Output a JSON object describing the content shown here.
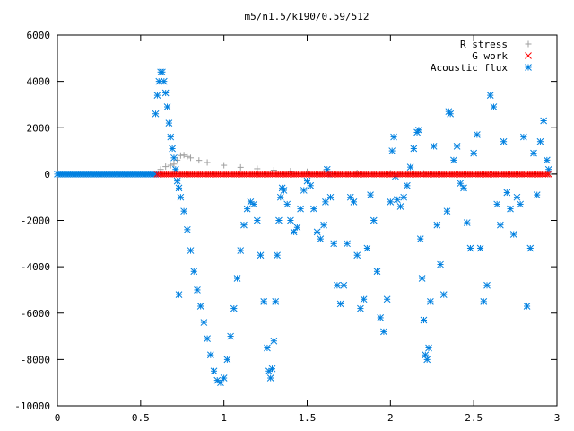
{
  "chart_data": {
    "type": "scatter",
    "title": "m5/n1.5/k190/0.59/512",
    "xlabel": "",
    "ylabel": "",
    "xlim": [
      0,
      3
    ],
    "ylim": [
      -10000,
      6000
    ],
    "x_ticks": [
      "0",
      "0.5",
      "1",
      "1.5",
      "2",
      "2.5",
      "3"
    ],
    "y_ticks": [
      "-10000",
      "-8000",
      "-6000",
      "-4000",
      "-2000",
      "0",
      "2000",
      "4000",
      "6000"
    ],
    "grid": false,
    "legend_position": "top-right",
    "series": [
      {
        "name": "R stress",
        "marker": "plus",
        "color": "#a0a0a0",
        "points": [
          [
            0.62,
            200
          ],
          [
            0.65,
            320
          ],
          [
            0.68,
            380
          ],
          [
            0.7,
            430
          ],
          [
            0.72,
            600
          ],
          [
            0.74,
            800
          ],
          [
            0.76,
            820
          ],
          [
            0.78,
            760
          ],
          [
            0.8,
            700
          ],
          [
            0.85,
            590
          ],
          [
            0.9,
            500
          ],
          [
            1.0,
            380
          ],
          [
            1.1,
            290
          ],
          [
            1.2,
            230
          ],
          [
            1.3,
            170
          ],
          [
            1.4,
            130
          ],
          [
            1.5,
            100
          ],
          [
            1.6,
            80
          ],
          [
            1.8,
            50
          ],
          [
            2.0,
            40
          ],
          [
            2.2,
            30
          ],
          [
            2.4,
            20
          ],
          [
            2.6,
            15
          ],
          [
            2.8,
            10
          ],
          [
            2.95,
            5
          ]
        ]
      },
      {
        "name": "G work",
        "marker": "cross",
        "color": "#ff0000",
        "points": [
          [
            0.6,
            0
          ],
          [
            2.95,
            0
          ]
        ]
      },
      {
        "name": "Acoustic flux",
        "marker": "asterisk",
        "color": "#0080e0",
        "points": [
          [
            0.0,
            0
          ],
          [
            0.6,
            0
          ],
          [
            0.59,
            2600
          ],
          [
            0.6,
            3400
          ],
          [
            0.61,
            4000
          ],
          [
            0.62,
            4400
          ],
          [
            0.63,
            4400
          ],
          [
            0.64,
            4000
          ],
          [
            0.65,
            3500
          ],
          [
            0.66,
            2900
          ],
          [
            0.67,
            2200
          ],
          [
            0.68,
            1600
          ],
          [
            0.69,
            1100
          ],
          [
            0.7,
            700
          ],
          [
            0.71,
            200
          ],
          [
            0.72,
            -300
          ],
          [
            0.73,
            -600
          ],
          [
            0.73,
            -5200
          ],
          [
            0.74,
            -1000
          ],
          [
            0.76,
            -1600
          ],
          [
            0.78,
            -2400
          ],
          [
            0.8,
            -3300
          ],
          [
            0.82,
            -4200
          ],
          [
            0.84,
            -5000
          ],
          [
            0.86,
            -5700
          ],
          [
            0.88,
            -6400
          ],
          [
            0.9,
            -7100
          ],
          [
            0.92,
            -7800
          ],
          [
            0.94,
            -8500
          ],
          [
            0.96,
            -8900
          ],
          [
            0.98,
            -9000
          ],
          [
            1.0,
            -8800
          ],
          [
            1.02,
            -8000
          ],
          [
            1.04,
            -7000
          ],
          [
            1.06,
            -5800
          ],
          [
            1.08,
            -4500
          ],
          [
            1.1,
            -3300
          ],
          [
            1.12,
            -2200
          ],
          [
            1.14,
            -1500
          ],
          [
            1.16,
            -1200
          ],
          [
            1.18,
            -1300
          ],
          [
            1.2,
            -2000
          ],
          [
            1.22,
            -3500
          ],
          [
            1.24,
            -5500
          ],
          [
            1.26,
            -7500
          ],
          [
            1.27,
            -8500
          ],
          [
            1.28,
            -8800
          ],
          [
            1.29,
            -8400
          ],
          [
            1.3,
            -7200
          ],
          [
            1.31,
            -5500
          ],
          [
            1.32,
            -3500
          ],
          [
            1.33,
            -2000
          ],
          [
            1.34,
            -1000
          ],
          [
            1.35,
            -600
          ],
          [
            1.36,
            -700
          ],
          [
            1.38,
            -1300
          ],
          [
            1.4,
            -2000
          ],
          [
            1.42,
            -2500
          ],
          [
            1.44,
            -2300
          ],
          [
            1.46,
            -1500
          ],
          [
            1.48,
            -700
          ],
          [
            1.5,
            -300
          ],
          [
            1.52,
            -500
          ],
          [
            1.54,
            -1500
          ],
          [
            1.56,
            -2500
          ],
          [
            1.58,
            -2800
          ],
          [
            1.6,
            -2200
          ],
          [
            1.61,
            -1200
          ],
          [
            1.62,
            200
          ],
          [
            1.63,
            0
          ],
          [
            1.64,
            -1000
          ],
          [
            1.66,
            -3000
          ],
          [
            1.68,
            -4800
          ],
          [
            1.7,
            -5600
          ],
          [
            1.72,
            -4800
          ],
          [
            1.74,
            -3000
          ],
          [
            1.76,
            -1000
          ],
          [
            1.78,
            -1200
          ],
          [
            1.8,
            -3500
          ],
          [
            1.82,
            -5800
          ],
          [
            1.84,
            -5400
          ],
          [
            1.86,
            -3200
          ],
          [
            1.88,
            -900
          ],
          [
            1.9,
            -2000
          ],
          [
            1.92,
            -4200
          ],
          [
            1.94,
            -6200
          ],
          [
            1.96,
            -6800
          ],
          [
            1.98,
            -5400
          ],
          [
            2.0,
            -1200
          ],
          [
            2.01,
            1000
          ],
          [
            2.02,
            1600
          ],
          [
            2.03,
            -100
          ],
          [
            2.04,
            -1100
          ],
          [
            2.06,
            -1400
          ],
          [
            2.08,
            -1000
          ],
          [
            2.1,
            -500
          ],
          [
            2.12,
            300
          ],
          [
            2.14,
            1100
          ],
          [
            2.16,
            1800
          ],
          [
            2.17,
            1900
          ],
          [
            2.18,
            -2800
          ],
          [
            2.19,
            -4500
          ],
          [
            2.2,
            -6300
          ],
          [
            2.21,
            -7800
          ],
          [
            2.22,
            -8000
          ],
          [
            2.23,
            -7500
          ],
          [
            2.24,
            -5500
          ],
          [
            2.26,
            1200
          ],
          [
            2.28,
            -2200
          ],
          [
            2.3,
            -3900
          ],
          [
            2.32,
            -5200
          ],
          [
            2.34,
            -1600
          ],
          [
            2.35,
            2700
          ],
          [
            2.36,
            2600
          ],
          [
            2.38,
            600
          ],
          [
            2.4,
            1200
          ],
          [
            2.42,
            -400
          ],
          [
            2.44,
            -600
          ],
          [
            2.46,
            -2100
          ],
          [
            2.48,
            -3200
          ],
          [
            2.5,
            900
          ],
          [
            2.52,
            1700
          ],
          [
            2.54,
            -3200
          ],
          [
            2.56,
            -5500
          ],
          [
            2.58,
            -4800
          ],
          [
            2.6,
            3400
          ],
          [
            2.62,
            2900
          ],
          [
            2.64,
            -1300
          ],
          [
            2.66,
            -2200
          ],
          [
            2.68,
            1400
          ],
          [
            2.7,
            -800
          ],
          [
            2.72,
            -1500
          ],
          [
            2.74,
            -2600
          ],
          [
            2.76,
            -1000
          ],
          [
            2.78,
            -1300
          ],
          [
            2.8,
            1600
          ],
          [
            2.82,
            -5700
          ],
          [
            2.84,
            -3200
          ],
          [
            2.86,
            900
          ],
          [
            2.88,
            -900
          ],
          [
            2.9,
            1400
          ],
          [
            2.92,
            2300
          ],
          [
            2.94,
            600
          ],
          [
            2.95,
            200
          ]
        ]
      }
    ]
  }
}
